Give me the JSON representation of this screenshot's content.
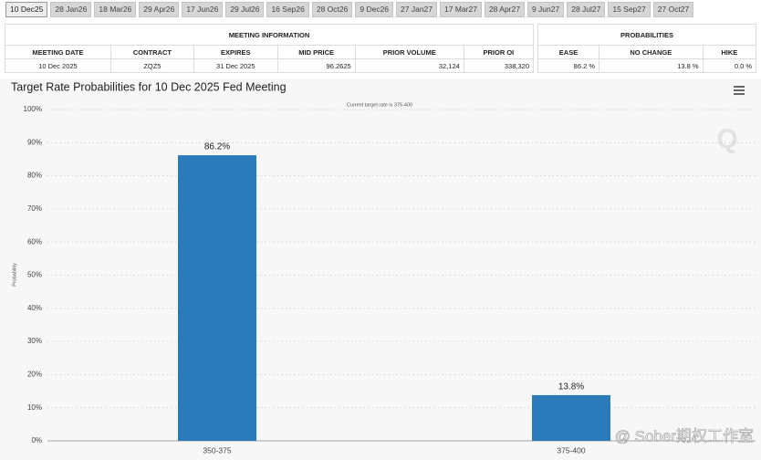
{
  "tabs": [
    "10 Dec25",
    "28 Jan26",
    "18 Mar26",
    "29 Apr26",
    "17 Jun26",
    "29 Jul26",
    "16 Sep26",
    "28 Oct26",
    "9 Dec26",
    "27 Jan27",
    "17 Mar27",
    "28 Apr27",
    "9 Jun27",
    "28 Jul27",
    "15 Sep27",
    "27 Oct27"
  ],
  "meeting_info": {
    "title": "MEETING INFORMATION",
    "headers": [
      "MEETING DATE",
      "CONTRACT",
      "EXPIRES",
      "MID PRICE",
      "PRIOR VOLUME",
      "PRIOR OI"
    ],
    "row": [
      "10 Dec 2025",
      "ZQZ5",
      "31 Dec 2025",
      "96.2625",
      "32,124",
      "338,320"
    ]
  },
  "probabilities": {
    "title": "PROBABILITIES",
    "headers": [
      "EASE",
      "NO CHANGE",
      "HIKE"
    ],
    "row": [
      "86.2 %",
      "13.8 %",
      "0.0 %"
    ]
  },
  "chart_data": {
    "type": "bar",
    "title": "Target Rate Probabilities for 10 Dec 2025 Fed Meeting",
    "subtitle": "Current target rate is 375-400",
    "y_label": "Probability",
    "categories": [
      "350-375",
      "375-400"
    ],
    "values": [
      86.2,
      13.8
    ],
    "value_labels": [
      "86.2%",
      "13.8%"
    ],
    "color": "#2b7bba",
    "ylim": [
      0,
      100
    ],
    "yticks": [
      {
        "value": 0,
        "label": "0%"
      },
      {
        "value": 10,
        "label": "10%"
      },
      {
        "value": 20,
        "label": "20%"
      },
      {
        "value": 30,
        "label": "30%"
      },
      {
        "value": 40,
        "label": "40%"
      },
      {
        "value": 50,
        "label": "50%"
      },
      {
        "value": 60,
        "label": "60%"
      },
      {
        "value": 70,
        "label": "70%"
      },
      {
        "value": 80,
        "label": "80%"
      },
      {
        "value": 90,
        "label": "90%"
      },
      {
        "value": 100,
        "label": "100%"
      }
    ],
    "grid": true
  },
  "watermark": "@ Sober期权工作室"
}
